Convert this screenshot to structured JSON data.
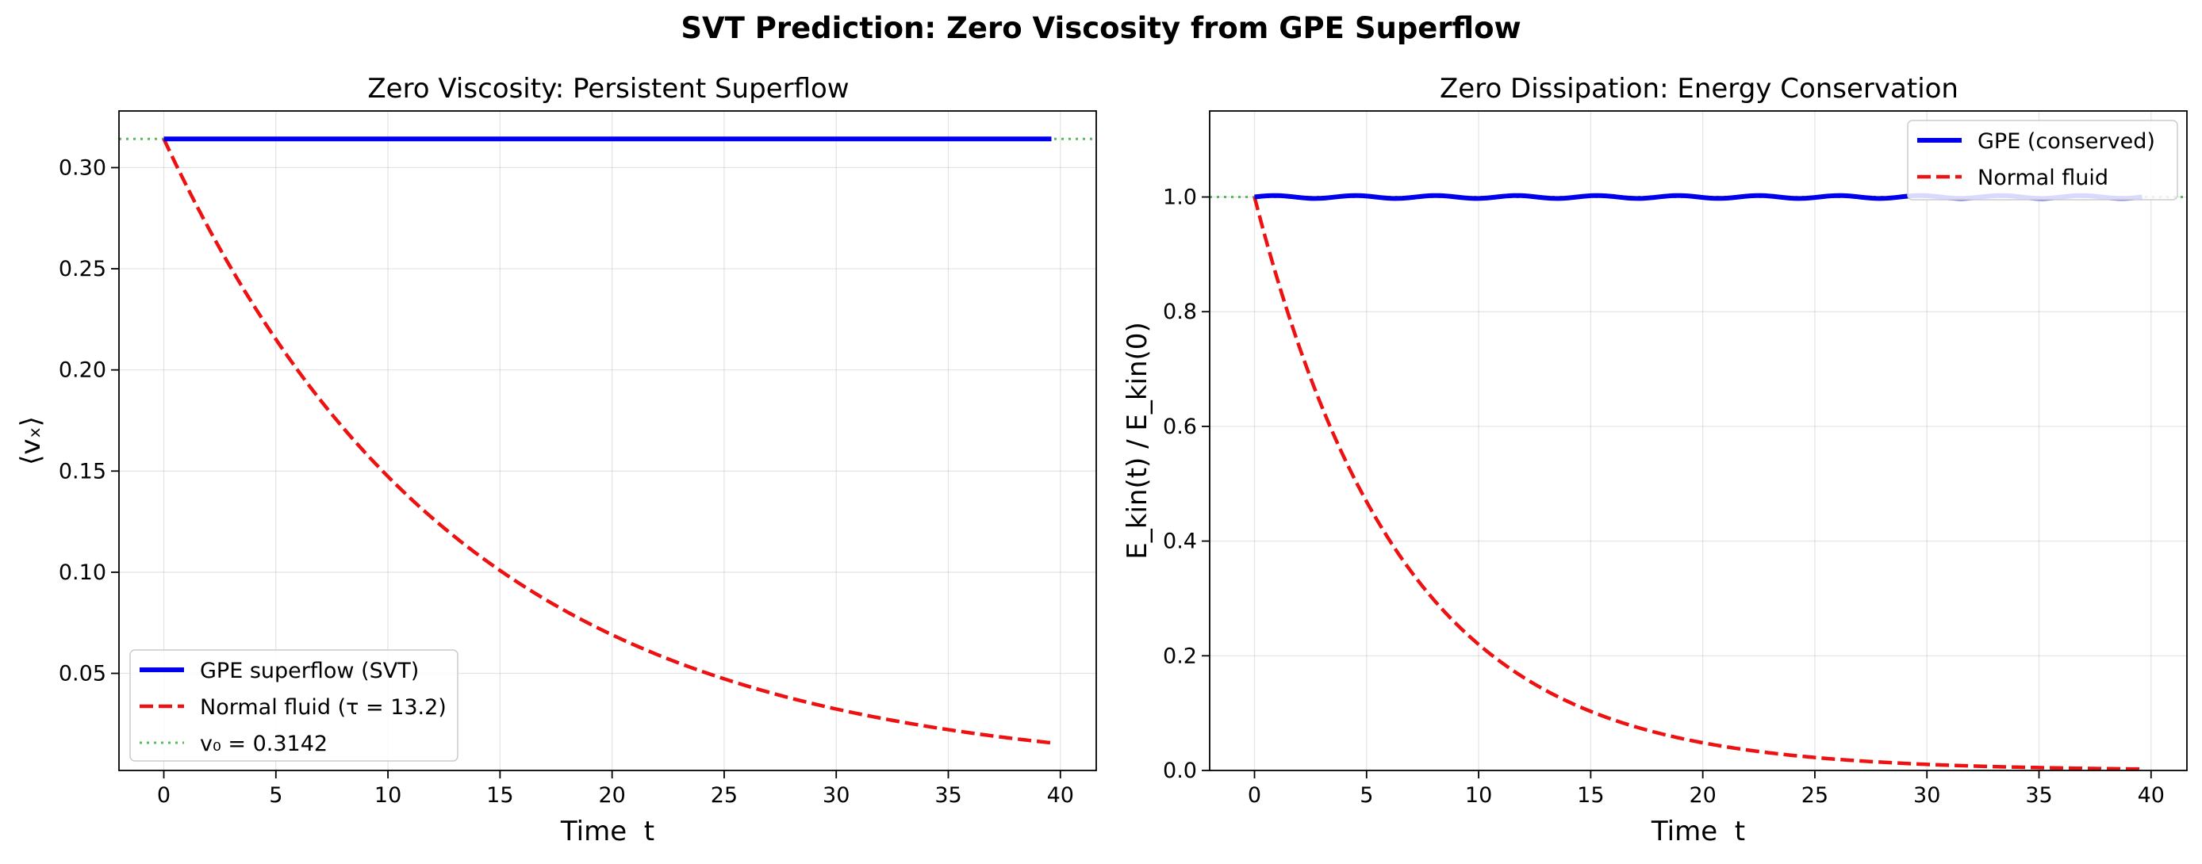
{
  "figure": {
    "suptitle": "SVT Prediction: Zero Viscosity from GPE Superflow"
  },
  "chart_data": [
    {
      "type": "line",
      "title": "Zero Viscosity: Persistent Superflow",
      "xlabel": "Time  t",
      "ylabel": "⟨vₓ⟩",
      "xlim": [
        -2,
        41.6
      ],
      "ylim": [
        0.002,
        0.328
      ],
      "xticks": [
        0,
        5,
        10,
        15,
        20,
        25,
        30,
        35,
        40
      ],
      "yticks": [
        0.05,
        0.1,
        0.15,
        0.2,
        0.25,
        0.3
      ],
      "ytick_labels": [
        "0.05",
        "0.10",
        "0.15",
        "0.20",
        "0.25",
        "0.30"
      ],
      "grid": true,
      "legend_position": "lower-left",
      "series": [
        {
          "name": "GPE superflow (SVT)",
          "kind": "constant",
          "value": 0.3142,
          "x_range": [
            0,
            39.6
          ],
          "color": "#0000ee",
          "style": "solid"
        },
        {
          "name": "Normal fluid (τ = 13.2)",
          "kind": "exp_decay",
          "v0": 0.3142,
          "tau": 13.2,
          "x_range": [
            0,
            39.6
          ],
          "color": "#ee1111",
          "style": "dashed"
        },
        {
          "name": "v₀ = 0.3142",
          "kind": "hline",
          "value": 0.3142,
          "color": "#5cb85c",
          "style": "dotted"
        }
      ]
    },
    {
      "type": "line",
      "title": "Zero Dissipation: Energy Conservation",
      "xlabel": "Time  t",
      "ylabel": "E_kin(t) / E_kin(0)",
      "xlim": [
        -2,
        41.6
      ],
      "ylim": [
        0.0,
        1.15
      ],
      "xticks": [
        0,
        5,
        10,
        15,
        20,
        25,
        30,
        35,
        40
      ],
      "yticks": [
        0.0,
        0.2,
        0.4,
        0.6,
        0.8,
        1.0
      ],
      "ytick_labels": [
        "0.0",
        "0.2",
        "0.4",
        "0.6",
        "0.8",
        "1.0"
      ],
      "grid": true,
      "legend_position": "top-right",
      "series": [
        {
          "name": "GPE (conserved)",
          "kind": "constant_wobble",
          "value": 1.0,
          "amplitude": 0.0025,
          "period": 3.6,
          "x_range": [
            0,
            39.6
          ],
          "color": "#0000ee",
          "style": "solid"
        },
        {
          "name": "Normal fluid",
          "kind": "exp_decay",
          "v0": 1.0,
          "tau": 6.6,
          "x_range": [
            0,
            39.6
          ],
          "color": "#ee1111",
          "style": "dashed"
        },
        {
          "name": "",
          "kind": "hline",
          "value": 1.0,
          "color": "#5cb85c",
          "style": "dotted",
          "in_legend": false
        }
      ]
    }
  ]
}
